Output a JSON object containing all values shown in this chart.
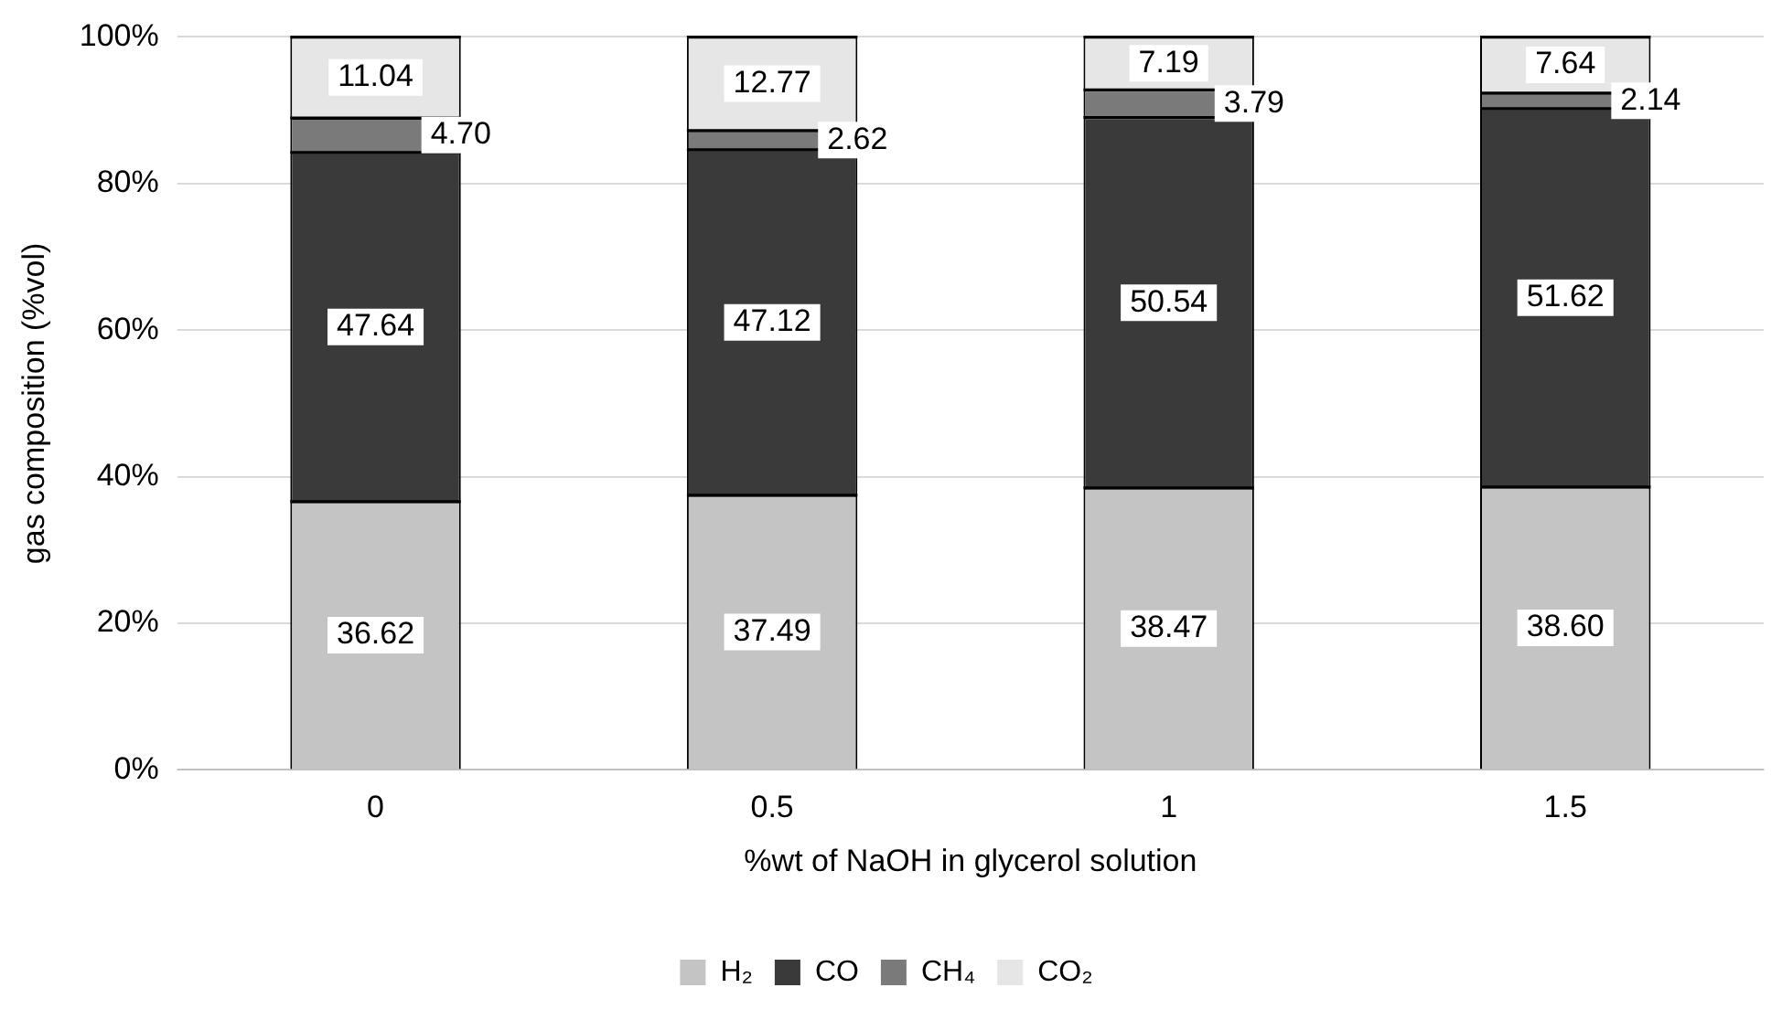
{
  "chart_data": {
    "type": "bar",
    "stacked": true,
    "xlabel": "%wt of NaOH in glycerol solution",
    "ylabel": "gas composition (%vol)",
    "categories": [
      "0",
      "0.5",
      "1",
      "1.5"
    ],
    "series": [
      {
        "name": "H₂",
        "color": "#c4c4c4",
        "values": [
          36.62,
          37.49,
          38.47,
          38.6
        ],
        "value_labels": [
          "36.62",
          "37.49",
          "38.47",
          "38.60"
        ]
      },
      {
        "name": "CO",
        "color": "#3a3a3a",
        "values": [
          47.64,
          47.12,
          50.54,
          51.62
        ],
        "value_labels": [
          "47.64",
          "47.12",
          "50.54",
          "51.62"
        ]
      },
      {
        "name": "CH₄",
        "color": "#7a7a7a",
        "values": [
          4.7,
          2.62,
          3.79,
          2.14
        ],
        "value_labels": [
          "4.70",
          "2.62",
          "3.79",
          "2.14"
        ]
      },
      {
        "name": "CO₂",
        "color": "#e6e6e6",
        "values": [
          11.04,
          12.77,
          7.19,
          7.64
        ],
        "value_labels": [
          "11.04",
          "12.77",
          "7.19",
          "7.64"
        ]
      }
    ],
    "ylim": [
      0,
      100
    ],
    "yticks": [
      {
        "value": 0,
        "label": "0%"
      },
      {
        "value": 20,
        "label": "20%"
      },
      {
        "value": 40,
        "label": "40%"
      },
      {
        "value": 60,
        "label": "60%"
      },
      {
        "value": 80,
        "label": "80%"
      },
      {
        "value": 100,
        "label": "100%"
      }
    ],
    "grid": "y",
    "legend": "bottom"
  }
}
